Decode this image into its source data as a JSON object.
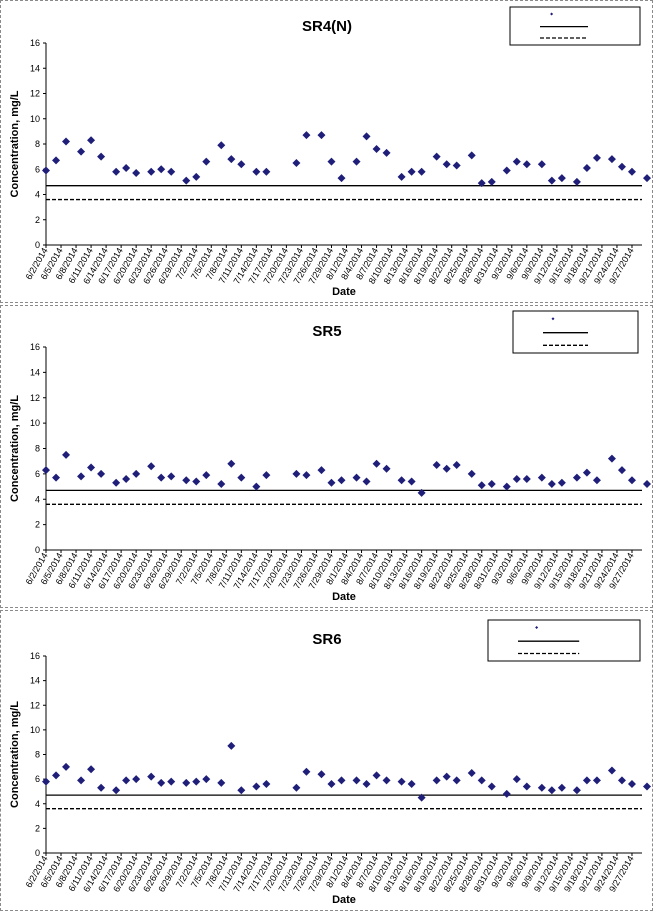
{
  "chart_data": [
    {
      "type": "scatter",
      "title": "SR4(N)",
      "xlabel": "Date",
      "ylabel": "Concentration, mg/L",
      "ylim": [
        0,
        16
      ],
      "yticks": [
        0,
        2,
        4,
        6,
        8,
        10,
        12,
        14,
        16
      ],
      "xlim": [
        "6/2/2014",
        "9/29/2014"
      ],
      "xticks": [
        "6/2/2014",
        "6/5/2014",
        "6/8/2014",
        "6/11/2014",
        "6/14/2014",
        "6/17/2014",
        "6/20/2014",
        "6/23/2014",
        "6/26/2014",
        "6/29/2014",
        "7/2/2014",
        "7/5/2014",
        "7/8/2014",
        "7/11/2014",
        "7/14/2014",
        "7/17/2014",
        "7/20/2014",
        "7/23/2014",
        "7/26/2014",
        "7/29/2014",
        "8/1/2014",
        "8/4/2014",
        "8/7/2014",
        "8/10/2014",
        "8/13/2014",
        "8/16/2014",
        "8/19/2014",
        "8/22/2014",
        "8/25/2014",
        "8/28/2014",
        "8/31/2014",
        "9/3/2014",
        "9/6/2014",
        "9/9/2014",
        "9/12/2014",
        "9/15/2014",
        "9/18/2014",
        "9/21/2014",
        "9/24/2014",
        "9/27/2014"
      ],
      "grid": false,
      "legend_position": "top-right",
      "reference_lines": [
        {
          "style": "solid",
          "value": 4.7
        },
        {
          "style": "dashed",
          "value": 3.6
        }
      ],
      "series": [
        {
          "marker": "diamond",
          "color": "#1f1f7a",
          "points": [
            [
              "6/2/2014",
              5.9
            ],
            [
              "6/4/2014",
              6.7
            ],
            [
              "6/6/2014",
              8.2
            ],
            [
              "6/9/2014",
              7.4
            ],
            [
              "6/11/2014",
              8.3
            ],
            [
              "6/13/2014",
              7.0
            ],
            [
              "6/16/2014",
              5.8
            ],
            [
              "6/18/2014",
              6.1
            ],
            [
              "6/20/2014",
              5.7
            ],
            [
              "6/23/2014",
              5.8
            ],
            [
              "6/25/2014",
              6.0
            ],
            [
              "6/27/2014",
              5.8
            ],
            [
              "6/30/2014",
              5.1
            ],
            [
              "7/2/2014",
              5.4
            ],
            [
              "7/4/2014",
              6.6
            ],
            [
              "7/7/2014",
              7.9
            ],
            [
              "7/9/2014",
              6.8
            ],
            [
              "7/11/2014",
              6.4
            ],
            [
              "7/14/2014",
              5.8
            ],
            [
              "7/16/2014",
              5.8
            ],
            [
              "7/22/2014",
              6.5
            ],
            [
              "7/24/2014",
              8.7
            ],
            [
              "7/27/2014",
              8.7
            ],
            [
              "7/29/2014",
              6.6
            ],
            [
              "7/31/2014",
              5.3
            ],
            [
              "8/3/2014",
              6.6
            ],
            [
              "8/5/2014",
              8.6
            ],
            [
              "8/7/2014",
              7.6
            ],
            [
              "8/9/2014",
              7.3
            ],
            [
              "8/12/2014",
              5.4
            ],
            [
              "8/14/2014",
              5.8
            ],
            [
              "8/16/2014",
              5.8
            ],
            [
              "8/19/2014",
              7.0
            ],
            [
              "8/21/2014",
              6.4
            ],
            [
              "8/23/2014",
              6.3
            ],
            [
              "8/26/2014",
              7.1
            ],
            [
              "8/28/2014",
              4.9
            ],
            [
              "8/30/2014",
              5.0
            ],
            [
              "9/2/2014",
              5.9
            ],
            [
              "9/4/2014",
              6.6
            ],
            [
              "9/6/2014",
              6.4
            ],
            [
              "9/9/2014",
              6.4
            ],
            [
              "9/11/2014",
              5.1
            ],
            [
              "9/13/2014",
              5.3
            ],
            [
              "9/16/2014",
              5.0
            ],
            [
              "9/18/2014",
              6.1
            ],
            [
              "9/20/2014",
              6.9
            ],
            [
              "9/23/2014",
              6.8
            ],
            [
              "9/25/2014",
              6.2
            ],
            [
              "9/27/2014",
              5.8
            ],
            [
              "9/30/2014",
              5.3
            ]
          ]
        }
      ]
    },
    {
      "type": "scatter",
      "title": "SR5",
      "xlabel": "Date",
      "ylabel": "Concentration, mg/L",
      "ylim": [
        0,
        16
      ],
      "yticks": [
        0,
        2,
        4,
        6,
        8,
        10,
        12,
        14,
        16
      ],
      "xlim": [
        "6/2/2014",
        "9/29/2014"
      ],
      "xticks": [
        "6/2/2014",
        "6/5/2014",
        "6/8/2014",
        "6/11/2014",
        "6/14/2014",
        "6/17/2014",
        "6/20/2014",
        "6/23/2014",
        "6/26/2014",
        "6/29/2014",
        "7/2/2014",
        "7/5/2014",
        "7/8/2014",
        "7/11/2014",
        "7/14/2014",
        "7/17/2014",
        "7/20/2014",
        "7/23/2014",
        "7/26/2014",
        "7/29/2014",
        "8/1/2014",
        "8/4/2014",
        "8/7/2014",
        "8/10/2014",
        "8/13/2014",
        "8/16/2014",
        "8/19/2014",
        "8/22/2014",
        "8/25/2014",
        "8/28/2014",
        "8/31/2014",
        "9/3/2014",
        "9/6/2014",
        "9/9/2014",
        "9/12/2014",
        "9/15/2014",
        "9/18/2014",
        "9/21/2014",
        "9/24/2014",
        "9/27/2014"
      ],
      "grid": false,
      "legend_position": "top-right",
      "reference_lines": [
        {
          "style": "solid",
          "value": 4.7
        },
        {
          "style": "dashed",
          "value": 3.6
        }
      ],
      "series": [
        {
          "marker": "diamond",
          "color": "#1f1f7a",
          "points": [
            [
              "6/2/2014",
              6.3
            ],
            [
              "6/4/2014",
              5.7
            ],
            [
              "6/6/2014",
              7.5
            ],
            [
              "6/9/2014",
              5.8
            ],
            [
              "6/11/2014",
              6.5
            ],
            [
              "6/13/2014",
              6.0
            ],
            [
              "6/16/2014",
              5.3
            ],
            [
              "6/18/2014",
              5.6
            ],
            [
              "6/20/2014",
              6.0
            ],
            [
              "6/23/2014",
              6.6
            ],
            [
              "6/25/2014",
              5.7
            ],
            [
              "6/27/2014",
              5.8
            ],
            [
              "6/30/2014",
              5.5
            ],
            [
              "7/2/2014",
              5.4
            ],
            [
              "7/4/2014",
              5.9
            ],
            [
              "7/7/2014",
              5.2
            ],
            [
              "7/9/2014",
              6.8
            ],
            [
              "7/11/2014",
              5.7
            ],
            [
              "7/14/2014",
              5.0
            ],
            [
              "7/16/2014",
              5.9
            ],
            [
              "7/22/2014",
              6.0
            ],
            [
              "7/24/2014",
              5.9
            ],
            [
              "7/27/2014",
              6.3
            ],
            [
              "7/29/2014",
              5.3
            ],
            [
              "7/31/2014",
              5.5
            ],
            [
              "8/3/2014",
              5.7
            ],
            [
              "8/5/2014",
              5.4
            ],
            [
              "8/7/2014",
              6.8
            ],
            [
              "8/9/2014",
              6.4
            ],
            [
              "8/12/2014",
              5.5
            ],
            [
              "8/14/2014",
              5.4
            ],
            [
              "8/16/2014",
              4.5
            ],
            [
              "8/19/2014",
              6.7
            ],
            [
              "8/21/2014",
              6.4
            ],
            [
              "8/23/2014",
              6.7
            ],
            [
              "8/26/2014",
              6.0
            ],
            [
              "8/28/2014",
              5.1
            ],
            [
              "8/30/2014",
              5.2
            ],
            [
              "9/2/2014",
              5.0
            ],
            [
              "9/4/2014",
              5.6
            ],
            [
              "9/6/2014",
              5.6
            ],
            [
              "9/9/2014",
              5.7
            ],
            [
              "9/11/2014",
              5.2
            ],
            [
              "9/13/2014",
              5.3
            ],
            [
              "9/16/2014",
              5.7
            ],
            [
              "9/18/2014",
              6.1
            ],
            [
              "9/20/2014",
              5.5
            ],
            [
              "9/23/2014",
              7.2
            ],
            [
              "9/25/2014",
              6.3
            ],
            [
              "9/27/2014",
              5.5
            ],
            [
              "9/30/2014",
              5.2
            ]
          ]
        }
      ]
    },
    {
      "type": "scatter",
      "title": "SR6",
      "xlabel": "Date",
      "ylabel": "Concentration, mg/L",
      "ylim": [
        0,
        16
      ],
      "yticks": [
        0,
        2,
        4,
        6,
        8,
        10,
        12,
        14,
        16
      ],
      "xlim": [
        "6/2/2014",
        "9/29/2014"
      ],
      "xticks": [
        "6/2/2014",
        "6/5/2014",
        "6/8/2014",
        "6/11/2014",
        "6/14/2014",
        "6/17/2014",
        "6/20/2014",
        "6/23/2014",
        "6/26/2014",
        "6/29/2014",
        "7/2/2014",
        "7/5/2014",
        "7/8/2014",
        "7/11/2014",
        "7/14/2014",
        "7/17/2014",
        "7/20/2014",
        "7/23/2014",
        "7/26/2014",
        "7/29/2014",
        "8/1/2014",
        "8/4/2014",
        "8/7/2014",
        "8/10/2014",
        "8/13/2014",
        "8/16/2014",
        "8/19/2014",
        "8/22/2014",
        "8/25/2014",
        "8/28/2014",
        "8/31/2014",
        "9/3/2014",
        "9/6/2014",
        "9/9/2014",
        "9/12/2014",
        "9/15/2014",
        "9/18/2014",
        "9/21/2014",
        "9/24/2014",
        "9/27/2014"
      ],
      "grid": false,
      "legend_position": "top-right",
      "reference_lines": [
        {
          "style": "solid",
          "value": 4.7
        },
        {
          "style": "dashed",
          "value": 3.6
        }
      ],
      "series": [
        {
          "marker": "diamond",
          "color": "#1f1f7a",
          "points": [
            [
              "6/2/2014",
              5.8
            ],
            [
              "6/4/2014",
              6.3
            ],
            [
              "6/6/2014",
              7.0
            ],
            [
              "6/9/2014",
              5.9
            ],
            [
              "6/11/2014",
              6.8
            ],
            [
              "6/13/2014",
              5.3
            ],
            [
              "6/16/2014",
              5.1
            ],
            [
              "6/18/2014",
              5.9
            ],
            [
              "6/20/2014",
              6.0
            ],
            [
              "6/23/2014",
              6.2
            ],
            [
              "6/25/2014",
              5.7
            ],
            [
              "6/27/2014",
              5.8
            ],
            [
              "6/30/2014",
              5.7
            ],
            [
              "7/2/2014",
              5.8
            ],
            [
              "7/4/2014",
              6.0
            ],
            [
              "7/7/2014",
              5.7
            ],
            [
              "7/9/2014",
              8.7
            ],
            [
              "7/11/2014",
              5.1
            ],
            [
              "7/14/2014",
              5.4
            ],
            [
              "7/16/2014",
              5.6
            ],
            [
              "7/22/2014",
              5.3
            ],
            [
              "7/24/2014",
              6.6
            ],
            [
              "7/27/2014",
              6.4
            ],
            [
              "7/29/2014",
              5.6
            ],
            [
              "7/31/2014",
              5.9
            ],
            [
              "8/3/2014",
              5.9
            ],
            [
              "8/5/2014",
              5.6
            ],
            [
              "8/7/2014",
              6.3
            ],
            [
              "8/9/2014",
              5.9
            ],
            [
              "8/12/2014",
              5.8
            ],
            [
              "8/14/2014",
              5.6
            ],
            [
              "8/16/2014",
              4.5
            ],
            [
              "8/19/2014",
              5.9
            ],
            [
              "8/21/2014",
              6.2
            ],
            [
              "8/23/2014",
              5.9
            ],
            [
              "8/26/2014",
              6.5
            ],
            [
              "8/28/2014",
              5.9
            ],
            [
              "8/30/2014",
              5.4
            ],
            [
              "9/2/2014",
              4.8
            ],
            [
              "9/4/2014",
              6.0
            ],
            [
              "9/6/2014",
              5.4
            ],
            [
              "9/9/2014",
              5.3
            ],
            [
              "9/11/2014",
              5.1
            ],
            [
              "9/13/2014",
              5.3
            ],
            [
              "9/16/2014",
              5.1
            ],
            [
              "9/18/2014",
              5.9
            ],
            [
              "9/20/2014",
              5.9
            ],
            [
              "9/23/2014",
              6.7
            ],
            [
              "9/25/2014",
              5.9
            ],
            [
              "9/27/2014",
              5.6
            ],
            [
              "9/30/2014",
              5.4
            ]
          ]
        }
      ]
    }
  ]
}
